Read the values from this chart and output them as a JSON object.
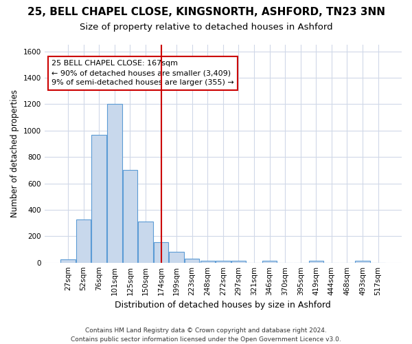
{
  "title1": "25, BELL CHAPEL CLOSE, KINGSNORTH, ASHFORD, TN23 3NN",
  "title2": "Size of property relative to detached houses in Ashford",
  "xlabel": "Distribution of detached houses by size in Ashford",
  "ylabel": "Number of detached properties",
  "bin_labels": [
    "27sqm",
    "52sqm",
    "76sqm",
    "101sqm",
    "125sqm",
    "150sqm",
    "174sqm",
    "199sqm",
    "223sqm",
    "248sqm",
    "272sqm",
    "297sqm",
    "321sqm",
    "346sqm",
    "370sqm",
    "395sqm",
    "419sqm",
    "444sqm",
    "468sqm",
    "493sqm",
    "517sqm"
  ],
  "bar_heights": [
    25,
    325,
    970,
    1200,
    700,
    310,
    155,
    80,
    30,
    15,
    15,
    15,
    0,
    15,
    0,
    0,
    15,
    0,
    0,
    15,
    0
  ],
  "bar_color": "#c8d8ec",
  "bar_edge_color": "#5b9bd5",
  "red_line_index": 6,
  "red_line_color": "#cc0000",
  "annotation_text": "25 BELL CHAPEL CLOSE: 167sqm\n← 90% of detached houses are smaller (3,409)\n9% of semi-detached houses are larger (355) →",
  "annotation_box_color": "#ffffff",
  "annotation_box_edge": "#cc0000",
  "ylim": [
    0,
    1650
  ],
  "yticks": [
    0,
    200,
    400,
    600,
    800,
    1000,
    1200,
    1400,
    1600
  ],
  "fig_bg": "#ffffff",
  "plot_bg": "#ffffff",
  "grid_color": "#d0d8e8",
  "footnote": "Contains HM Land Registry data © Crown copyright and database right 2024.\nContains public sector information licensed under the Open Government Licence v3.0.",
  "title1_fontsize": 11,
  "title2_fontsize": 9.5,
  "xlabel_fontsize": 9,
  "ylabel_fontsize": 8.5,
  "tick_fontsize": 7.5,
  "footnote_fontsize": 6.5
}
